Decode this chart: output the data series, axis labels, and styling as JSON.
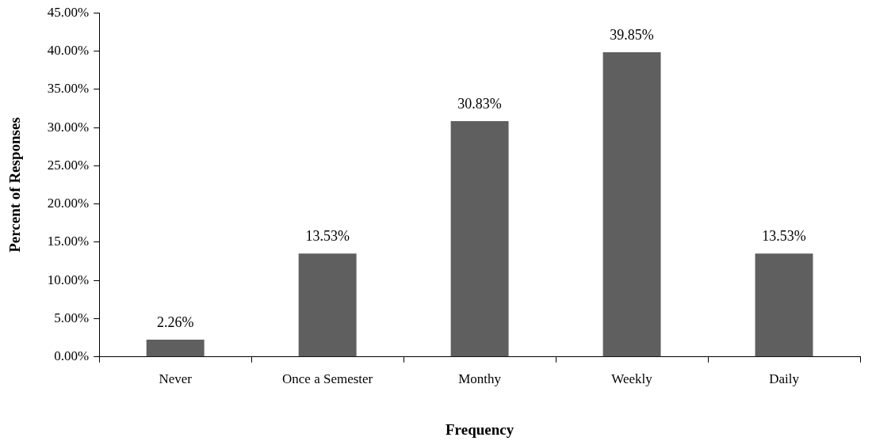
{
  "chart_data": {
    "type": "bar",
    "xlabel": "Frequency",
    "ylabel": "Percent of Responses",
    "categories": [
      "Never",
      "Once a Semester",
      "Monthy",
      "Weekly",
      "Daily"
    ],
    "values": [
      2.26,
      13.53,
      30.83,
      39.85,
      13.53
    ],
    "value_labels": [
      "2.26%",
      "13.53%",
      "30.83%",
      "39.85%",
      "13.53%"
    ],
    "color": "#5f5f5f",
    "ylim": [
      0,
      45
    ],
    "yticks": [
      {
        "value": 0,
        "label": "0.00%"
      },
      {
        "value": 5,
        "label": "5.00%"
      },
      {
        "value": 10,
        "label": "10.00%"
      },
      {
        "value": 15,
        "label": "15.00%"
      },
      {
        "value": 20,
        "label": "20.00%"
      },
      {
        "value": 25,
        "label": "25.00%"
      },
      {
        "value": 30,
        "label": "30.00%"
      },
      {
        "value": 35,
        "label": "35.00%"
      },
      {
        "value": 40,
        "label": "40.00%"
      },
      {
        "value": 45,
        "label": "45.00%"
      }
    ],
    "grid": false,
    "legend": false
  }
}
